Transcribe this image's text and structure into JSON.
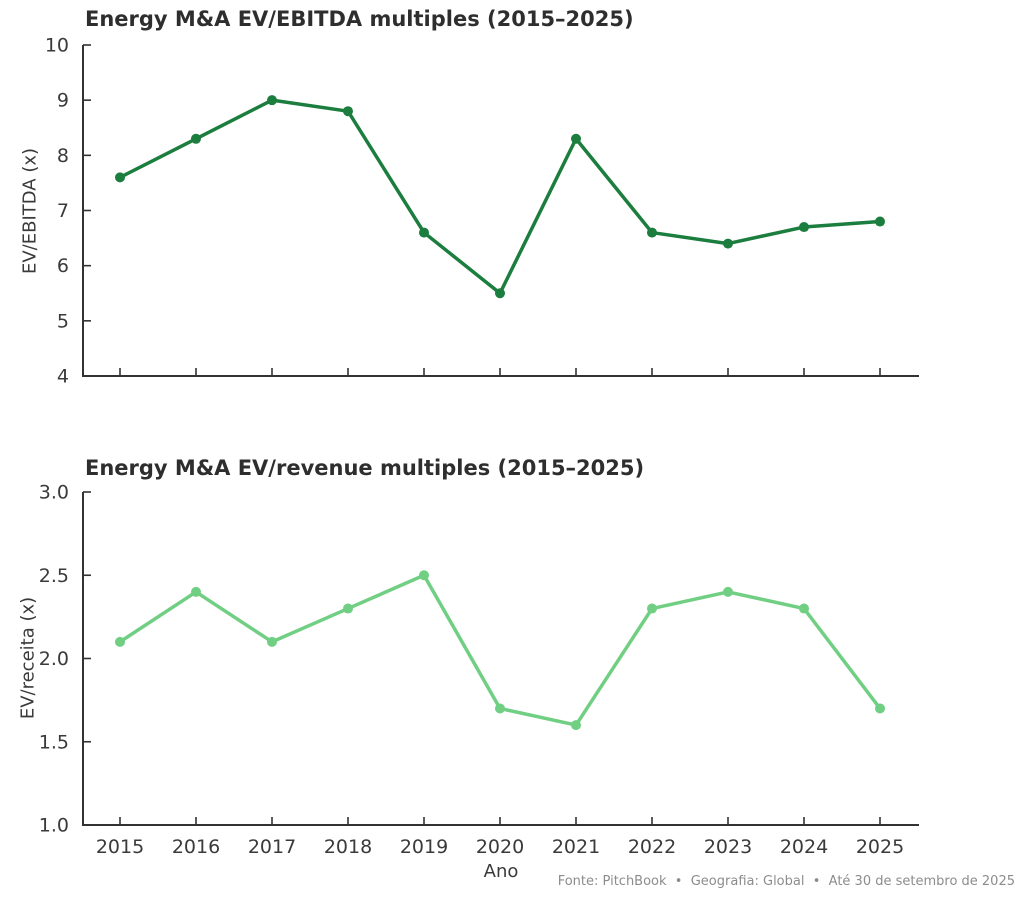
{
  "colors": {
    "axis": "#333333",
    "tick_text": "#3a3a3a",
    "title_text": "#2e2e2e",
    "footer_text": "#8c8c8c",
    "background": "#ffffff",
    "ebitda_line": "#1b7d3e",
    "revenue_line": "#70cf82"
  },
  "footer": {
    "text": "Fonte: PitchBook  •  Geografia: Global  •  Até 30 de setembro de 2025"
  },
  "chart_data": [
    {
      "type": "line",
      "title": "Energy M&A EV/EBITDA multiples (2015–2025)",
      "xlabel": "",
      "ylabel": "EV/EBITDA (x)",
      "x": [
        2015,
        2016,
        2017,
        2018,
        2019,
        2020,
        2021,
        2022,
        2023,
        2024,
        2025
      ],
      "series": [
        {
          "name": "EV/EBITDA multiple",
          "color": "#1b7d3e",
          "values": [
            7.6,
            8.3,
            9.0,
            8.8,
            6.6,
            5.5,
            8.3,
            6.6,
            6.4,
            6.7,
            6.8
          ]
        }
      ],
      "ylim": [
        4,
        10
      ],
      "yticks": [
        4,
        5,
        6,
        7,
        8,
        9,
        10
      ],
      "ytick_labels": [
        "4",
        "5",
        "6",
        "7",
        "8",
        "9",
        "10"
      ],
      "show_x_tick_labels": false,
      "grid": false,
      "legend": "none"
    },
    {
      "type": "line",
      "title": "Energy M&A EV/revenue multiples (2015–2025)",
      "xlabel": "Ano",
      "ylabel": "EV/receita (x)",
      "x": [
        2015,
        2016,
        2017,
        2018,
        2019,
        2020,
        2021,
        2022,
        2023,
        2024,
        2025
      ],
      "series": [
        {
          "name": "EV/revenue multiple",
          "color": "#70cf82",
          "values": [
            2.1,
            2.4,
            2.1,
            2.3,
            2.5,
            1.7,
            1.6,
            2.3,
            2.4,
            2.3,
            1.7
          ]
        }
      ],
      "ylim": [
        1.0,
        3.0
      ],
      "yticks": [
        1.0,
        1.5,
        2.0,
        2.5,
        3.0
      ],
      "ytick_labels": [
        "1.0",
        "1.5",
        "2.0",
        "2.5",
        "3.0"
      ],
      "xtick_labels": [
        "2015",
        "2016",
        "2017",
        "2018",
        "2019",
        "2020",
        "2021",
        "2022",
        "2023",
        "2024",
        "2025"
      ],
      "show_x_tick_labels": true,
      "grid": false,
      "legend": "none"
    }
  ]
}
